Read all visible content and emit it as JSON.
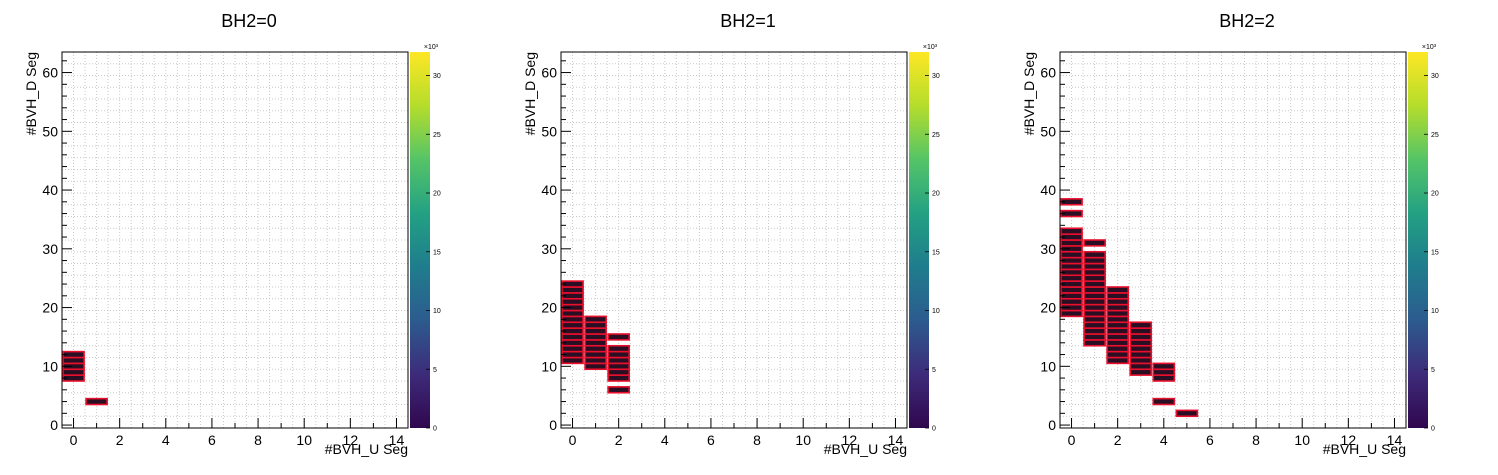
{
  "chart_data": [
    {
      "type": "heatmap",
      "title": "BH2=0",
      "xlabel": "#BVH_U Seg",
      "ylabel": "#BVH_D Seg",
      "xlim": [
        -0.5,
        14.5
      ],
      "ylim": [
        -0.5,
        63.5
      ],
      "xticks": [
        "0",
        "2",
        "4",
        "6",
        "8",
        "10",
        "12",
        "14"
      ],
      "yticks": [
        "0",
        "10",
        "20",
        "30",
        "40",
        "50",
        "60"
      ],
      "grid": true,
      "colorbar": {
        "min": 0,
        "max": 32,
        "multiplier": "×10³",
        "ticks": [
          "0",
          "5",
          "10",
          "15",
          "20",
          "25",
          "30"
        ]
      },
      "cells": [
        {
          "x": 0,
          "y": 8
        },
        {
          "x": 0,
          "y": 9
        },
        {
          "x": 0,
          "y": 10
        },
        {
          "x": 0,
          "y": 11
        },
        {
          "x": 0,
          "y": 12
        },
        {
          "x": 1,
          "y": 4
        }
      ]
    },
    {
      "type": "heatmap",
      "title": "BH2=1",
      "xlabel": "#BVH_U Seg",
      "ylabel": "#BVH_D Seg",
      "xlim": [
        -0.5,
        14.5
      ],
      "ylim": [
        -0.5,
        63.5
      ],
      "xticks": [
        "0",
        "2",
        "4",
        "6",
        "8",
        "10",
        "12",
        "14"
      ],
      "yticks": [
        "0",
        "10",
        "20",
        "30",
        "40",
        "50",
        "60"
      ],
      "grid": true,
      "colorbar": {
        "min": 0,
        "max": 32,
        "multiplier": "×10³",
        "ticks": [
          "0",
          "5",
          "10",
          "15",
          "20",
          "25",
          "30"
        ]
      },
      "cells": [
        {
          "x": 0,
          "y": 11
        },
        {
          "x": 0,
          "y": 12
        },
        {
          "x": 0,
          "y": 13
        },
        {
          "x": 0,
          "y": 14
        },
        {
          "x": 0,
          "y": 15
        },
        {
          "x": 0,
          "y": 16
        },
        {
          "x": 0,
          "y": 17
        },
        {
          "x": 0,
          "y": 18
        },
        {
          "x": 0,
          "y": 19
        },
        {
          "x": 0,
          "y": 20
        },
        {
          "x": 0,
          "y": 21
        },
        {
          "x": 0,
          "y": 22
        },
        {
          "x": 0,
          "y": 23
        },
        {
          "x": 0,
          "y": 24
        },
        {
          "x": 1,
          "y": 10
        },
        {
          "x": 1,
          "y": 11
        },
        {
          "x": 1,
          "y": 12
        },
        {
          "x": 1,
          "y": 13
        },
        {
          "x": 1,
          "y": 14
        },
        {
          "x": 1,
          "y": 15
        },
        {
          "x": 1,
          "y": 16
        },
        {
          "x": 1,
          "y": 17
        },
        {
          "x": 1,
          "y": 18
        },
        {
          "x": 2,
          "y": 6
        },
        {
          "x": 2,
          "y": 8
        },
        {
          "x": 2,
          "y": 9
        },
        {
          "x": 2,
          "y": 10
        },
        {
          "x": 2,
          "y": 11
        },
        {
          "x": 2,
          "y": 12
        },
        {
          "x": 2,
          "y": 13
        },
        {
          "x": 2,
          "y": 15
        }
      ]
    },
    {
      "type": "heatmap",
      "title": "BH2=2",
      "xlabel": "#BVH_U Seg",
      "ylabel": "#BVH_D Seg",
      "xlim": [
        -0.5,
        14.5
      ],
      "ylim": [
        -0.5,
        63.5
      ],
      "xticks": [
        "0",
        "2",
        "4",
        "6",
        "8",
        "10",
        "12",
        "14"
      ],
      "yticks": [
        "0",
        "10",
        "20",
        "30",
        "40",
        "50",
        "60"
      ],
      "grid": true,
      "colorbar": {
        "min": 0,
        "max": 32,
        "multiplier": "×10³",
        "ticks": [
          "0",
          "5",
          "10",
          "15",
          "20",
          "25",
          "30"
        ]
      },
      "cells": [
        {
          "x": 0,
          "y": 19
        },
        {
          "x": 0,
          "y": 20
        },
        {
          "x": 0,
          "y": 21
        },
        {
          "x": 0,
          "y": 22
        },
        {
          "x": 0,
          "y": 23
        },
        {
          "x": 0,
          "y": 24
        },
        {
          "x": 0,
          "y": 25
        },
        {
          "x": 0,
          "y": 26
        },
        {
          "x": 0,
          "y": 27
        },
        {
          "x": 0,
          "y": 28
        },
        {
          "x": 0,
          "y": 29
        },
        {
          "x": 0,
          "y": 30
        },
        {
          "x": 0,
          "y": 31
        },
        {
          "x": 0,
          "y": 32
        },
        {
          "x": 0,
          "y": 33
        },
        {
          "x": 0,
          "y": 36
        },
        {
          "x": 0,
          "y": 38
        },
        {
          "x": 1,
          "y": 14
        },
        {
          "x": 1,
          "y": 15
        },
        {
          "x": 1,
          "y": 16
        },
        {
          "x": 1,
          "y": 17
        },
        {
          "x": 1,
          "y": 18
        },
        {
          "x": 1,
          "y": 19
        },
        {
          "x": 1,
          "y": 20
        },
        {
          "x": 1,
          "y": 21
        },
        {
          "x": 1,
          "y": 22
        },
        {
          "x": 1,
          "y": 23
        },
        {
          "x": 1,
          "y": 24
        },
        {
          "x": 1,
          "y": 25
        },
        {
          "x": 1,
          "y": 26
        },
        {
          "x": 1,
          "y": 27
        },
        {
          "x": 1,
          "y": 28
        },
        {
          "x": 1,
          "y": 29
        },
        {
          "x": 1,
          "y": 31
        },
        {
          "x": 2,
          "y": 11
        },
        {
          "x": 2,
          "y": 12
        },
        {
          "x": 2,
          "y": 13
        },
        {
          "x": 2,
          "y": 14
        },
        {
          "x": 2,
          "y": 15
        },
        {
          "x": 2,
          "y": 16
        },
        {
          "x": 2,
          "y": 17
        },
        {
          "x": 2,
          "y": 18
        },
        {
          "x": 2,
          "y": 19
        },
        {
          "x": 2,
          "y": 20
        },
        {
          "x": 2,
          "y": 21
        },
        {
          "x": 2,
          "y": 22
        },
        {
          "x": 2,
          "y": 23
        },
        {
          "x": 3,
          "y": 9
        },
        {
          "x": 3,
          "y": 10
        },
        {
          "x": 3,
          "y": 11
        },
        {
          "x": 3,
          "y": 12
        },
        {
          "x": 3,
          "y": 13
        },
        {
          "x": 3,
          "y": 14
        },
        {
          "x": 3,
          "y": 15
        },
        {
          "x": 3,
          "y": 16
        },
        {
          "x": 3,
          "y": 17
        },
        {
          "x": 4,
          "y": 4
        },
        {
          "x": 4,
          "y": 8
        },
        {
          "x": 4,
          "y": 9
        },
        {
          "x": 4,
          "y": 10
        },
        {
          "x": 5,
          "y": 2
        }
      ]
    }
  ],
  "colors": {
    "cell_fill": "#2a0f24",
    "cell_border": "#e8102c",
    "colorbar_stops": [
      "#30074e",
      "#3d2b7a",
      "#2c5b8e",
      "#1f7d8d",
      "#23a183",
      "#55c467",
      "#b5dd2b",
      "#fde725"
    ]
  }
}
